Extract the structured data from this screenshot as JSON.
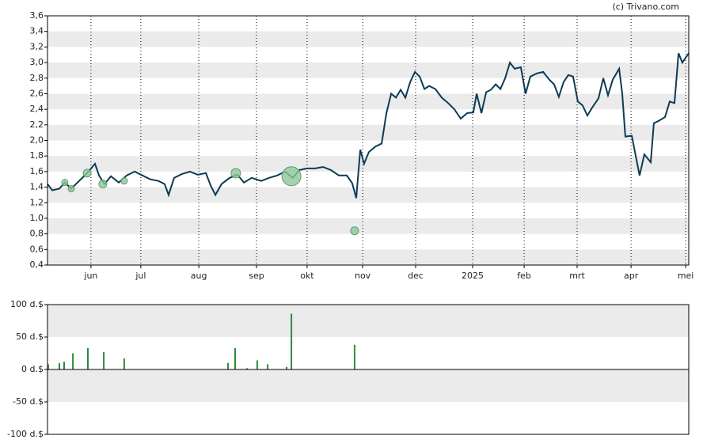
{
  "source": "(c) Trivano.com",
  "chart_data": [
    {
      "type": "line",
      "color": "#0d3b54",
      "x": [
        0,
        2,
        5,
        7.3,
        10,
        13.3,
        16.7,
        20,
        21.7,
        24,
        26.7,
        30,
        33.3,
        36.7,
        40,
        43.3,
        46.7,
        49.3,
        51,
        53.3,
        56.7,
        60,
        63.3,
        66.7,
        68.7,
        70.7,
        73.3,
        76.7,
        80,
        82.7,
        86,
        90,
        93.3,
        96.7,
        100,
        103.3,
        106,
        109.3,
        112.7,
        116,
        119.3,
        122.7,
        126,
        128.3,
        130,
        131.7,
        133.3,
        135.3,
        138,
        140.7,
        142.7,
        144.7,
        146.7,
        148.7,
        150.7,
        152.7,
        154.7,
        156.7,
        158.7,
        160.7,
        163.3,
        166,
        168.7,
        171.3,
        174,
        176.7,
        179.3,
        180.7,
        182.7,
        184.7,
        186.7,
        188.7,
        190.7,
        192.7,
        194.7,
        196.7,
        199.3,
        201.3,
        203.3,
        206,
        208.7,
        211.3,
        213.3,
        215.3,
        217.3,
        219.3,
        221.3,
        223.3,
        225.3,
        227.3,
        229.3,
        232,
        234,
        236,
        238,
        240.7,
        242,
        243.3,
        246,
        248,
        249.3,
        251.3,
        254,
        255.3,
        257.3,
        260,
        262,
        264,
        265.7,
        267.3,
        270
      ],
      "values": [
        1.44,
        1.36,
        1.38,
        1.46,
        1.38,
        1.48,
        1.58,
        1.7,
        1.55,
        1.44,
        1.54,
        1.46,
        1.55,
        1.6,
        1.55,
        1.5,
        1.48,
        1.44,
        1.3,
        1.52,
        1.57,
        1.6,
        1.56,
        1.58,
        1.42,
        1.3,
        1.44,
        1.52,
        1.56,
        1.46,
        1.52,
        1.48,
        1.52,
        1.55,
        1.6,
        1.52,
        1.62,
        1.64,
        1.64,
        1.66,
        1.62,
        1.55,
        1.55,
        1.45,
        1.26,
        1.88,
        1.7,
        1.85,
        1.92,
        1.96,
        2.35,
        2.6,
        2.55,
        2.65,
        2.55,
        2.75,
        2.88,
        2.82,
        2.66,
        2.7,
        2.66,
        2.55,
        2.48,
        2.4,
        2.28,
        2.35,
        2.36,
        2.6,
        2.35,
        2.62,
        2.65,
        2.72,
        2.66,
        2.8,
        3.0,
        2.92,
        2.94,
        2.6,
        2.82,
        2.86,
        2.88,
        2.78,
        2.72,
        2.56,
        2.75,
        2.84,
        2.82,
        2.5,
        2.45,
        2.32,
        2.42,
        2.54,
        2.8,
        2.58,
        2.78,
        2.92,
        2.6,
        2.05,
        2.06,
        1.75,
        1.55,
        1.82,
        1.72,
        2.22,
        2.25,
        2.3,
        2.5,
        2.48,
        3.12,
        3.0,
        3.12
      ],
      "events": {
        "color": "#8fc79a",
        "x": [
          7.3,
          10,
          16.7,
          23.3,
          32.3,
          79.3,
          102.7,
          129.3
        ],
        "values": [
          1.46,
          1.38,
          1.58,
          1.44,
          1.48,
          1.58,
          1.54,
          0.84
        ],
        "sizes": [
          4,
          4,
          5,
          5,
          4,
          6,
          12,
          5
        ]
      },
      "xlim": [
        0,
        270
      ],
      "xticks": [
        {
          "value": 18.3,
          "label": "jun"
        },
        {
          "value": 39.3,
          "label": "jul"
        },
        {
          "value": 63.7,
          "label": "aug"
        },
        {
          "value": 88,
          "label": "sep"
        },
        {
          "value": 109.3,
          "label": "okt"
        },
        {
          "value": 132.7,
          "label": "nov"
        },
        {
          "value": 155,
          "label": "dec"
        },
        {
          "value": 179,
          "label": "2025"
        },
        {
          "value": 200.7,
          "label": "feb"
        },
        {
          "value": 223,
          "label": "mrt"
        },
        {
          "value": 245.7,
          "label": "apr"
        },
        {
          "value": 268.7,
          "label": "mei"
        }
      ],
      "ylim": [
        0.4,
        3.6
      ],
      "yticks": [
        {
          "value": 0.4,
          "label": "0,4"
        },
        {
          "value": 0.6,
          "label": "0,6"
        },
        {
          "value": 0.8,
          "label": "0,8"
        },
        {
          "value": 1.0,
          "label": "1,0"
        },
        {
          "value": 1.2,
          "label": "1,2"
        },
        {
          "value": 1.4,
          "label": "1,4"
        },
        {
          "value": 1.6,
          "label": "1,6"
        },
        {
          "value": 1.8,
          "label": "1,8"
        },
        {
          "value": 2.0,
          "label": "2,0"
        },
        {
          "value": 2.2,
          "label": "2,2"
        },
        {
          "value": 2.4,
          "label": "2,4"
        },
        {
          "value": 2.6,
          "label": "2,6"
        },
        {
          "value": 2.8,
          "label": "2,8"
        },
        {
          "value": 3.0,
          "label": "3,0"
        },
        {
          "value": 3.2,
          "label": "3,2"
        },
        {
          "value": 3.4,
          "label": "3,4"
        },
        {
          "value": 3.6,
          "label": "3,6"
        }
      ]
    },
    {
      "type": "bar",
      "color": "#2e8b3e",
      "x": [
        0.3,
        5,
        7,
        10.7,
        17,
        23.7,
        32.3,
        76,
        79,
        84,
        88.3,
        92.7,
        100.7,
        102.7,
        129.3
      ],
      "values": [
        8,
        10,
        12,
        25,
        33,
        27,
        17,
        10,
        33,
        2,
        14,
        8,
        4,
        86,
        38
      ],
      "xlim": [
        0,
        270
      ],
      "ylim": [
        -100,
        100
      ],
      "yticks": [
        {
          "value": -100,
          "label": "-100 d.$"
        },
        {
          "value": -50,
          "label": "-50 d.$"
        },
        {
          "value": 0,
          "label": "0 d.$"
        },
        {
          "value": 50,
          "label": "50 d.$"
        },
        {
          "value": 100,
          "label": "100 d.$"
        }
      ]
    }
  ]
}
